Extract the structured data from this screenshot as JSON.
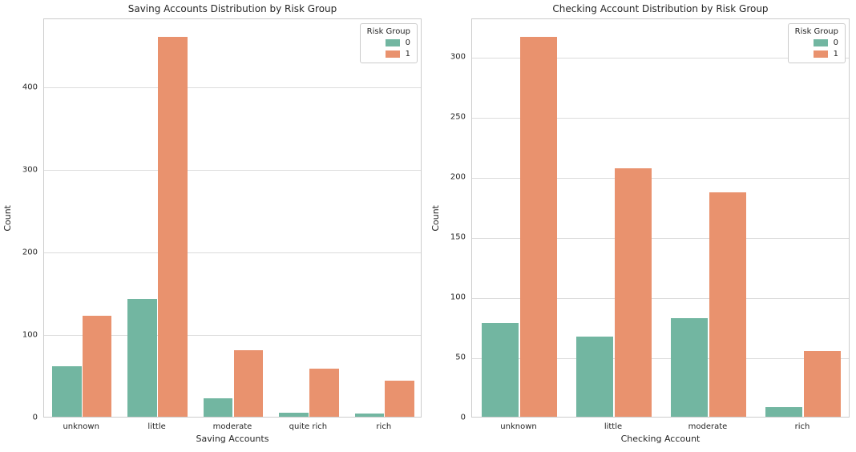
{
  "figure": {
    "background": "#ffffff"
  },
  "colors": {
    "group0": "#72b6a1",
    "group1": "#e9926e",
    "grid": "#dcdcdc",
    "spine": "#cccccc",
    "text": "#262626"
  },
  "legend": {
    "title": "Risk Group",
    "entries": [
      {
        "label": "0",
        "color": "#72b6a1"
      },
      {
        "label": "1",
        "color": "#e9926e"
      }
    ]
  },
  "chart_data": [
    {
      "type": "bar",
      "title": "Saving Accounts Distribution by Risk Group",
      "xlabel": "Saving Accounts",
      "ylabel": "Count",
      "categories": [
        "unknown",
        "little",
        "moderate",
        "quite rich",
        "rich"
      ],
      "series": [
        {
          "name": "0",
          "color": "#72b6a1",
          "values": [
            61,
            143,
            22,
            5,
            4
          ]
        },
        {
          "name": "1",
          "color": "#e9926e",
          "values": [
            122,
            460,
            81,
            58,
            44
          ]
        }
      ],
      "yticks": [
        0,
        100,
        200,
        300,
        400
      ],
      "ylim": [
        0,
        483
      ],
      "grid": true,
      "legend_position": "upper right"
    },
    {
      "type": "bar",
      "title": "Checking Account Distribution by Risk Group",
      "xlabel": "Checking Account",
      "ylabel": "Count",
      "categories": [
        "unknown",
        "little",
        "moderate",
        "rich"
      ],
      "series": [
        {
          "name": "0",
          "color": "#72b6a1",
          "values": [
            78,
            67,
            82,
            8
          ]
        },
        {
          "name": "1",
          "color": "#e9926e",
          "values": [
            316,
            207,
            187,
            55
          ]
        }
      ],
      "yticks": [
        0,
        50,
        100,
        150,
        200,
        250,
        300
      ],
      "ylim": [
        0,
        332
      ],
      "grid": true,
      "legend_position": "upper right"
    }
  ]
}
